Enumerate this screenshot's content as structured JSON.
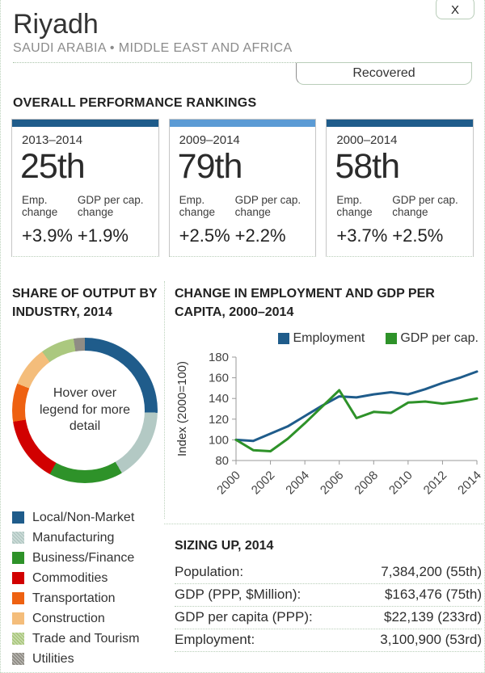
{
  "header": {
    "title": "Riyadh",
    "subtitle": "SAUDI ARABIA • MIDDLE EAST AND AFRICA",
    "close_label": "X",
    "status_label": "Recovered"
  },
  "rankings": {
    "heading": "OVERALL PERFORMANCE RANKINGS",
    "cards": [
      {
        "period": "2013–2014",
        "rank": "25th",
        "bar_color": "#1f5c8b",
        "emp_label": "Emp. change",
        "gdp_label": "GDP per cap. change",
        "emp_value": "+3.9%",
        "gdp_value": "+1.9%"
      },
      {
        "period": "2009–2014",
        "rank": "79th",
        "bar_color": "#5b9bd5",
        "emp_label": "Emp. change",
        "gdp_label": "GDP per cap. change",
        "emp_value": "+2.5%",
        "gdp_value": "+2.2%"
      },
      {
        "period": "2000–2014",
        "rank": "58th",
        "bar_color": "#1f5c8b",
        "emp_label": "Emp. change",
        "gdp_label": "GDP per cap. change",
        "emp_value": "+3.7%",
        "gdp_value": "+2.5%"
      }
    ]
  },
  "industry": {
    "heading": "SHARE OF OUTPUT BY INDUSTRY, 2014"
  },
  "employment_chart": {
    "heading": "CHANGE IN EMPLOYMENT AND GDP PER CAPITA, 2000–2014"
  },
  "sizing": {
    "heading": "SIZING UP, 2014",
    "rows": [
      {
        "label": "Population:",
        "value": "7,384,200 (55th)"
      },
      {
        "label": "GDP (PPP, $Million):",
        "value": "$163,476 (75th)"
      },
      {
        "label": "GDP per capita (PPP):",
        "value": "$22,139 (233rd)"
      },
      {
        "label": "Employment:",
        "value": "3,100,900 (53rd)"
      }
    ]
  },
  "chart_data": [
    {
      "type": "pie",
      "donut": true,
      "title": "SHARE OF OUTPUT BY INDUSTRY, 2014",
      "center_text": "Hover over legend for more detail",
      "labels": [
        "Local/Non-Market",
        "Manufacturing",
        "Business/Finance",
        "Commodities",
        "Transportation",
        "Construction",
        "Trade and Tourism",
        "Utilities"
      ],
      "values": [
        25.5,
        16,
        16.5,
        14.5,
        8.5,
        9,
        7.5,
        2.5
      ],
      "colors": [
        "#1f5c8b",
        "#b3c9c4",
        "#2e9229",
        "#d10000",
        "#ee6111",
        "#f4bd7b",
        "#abc87f",
        "#8f8c85"
      ],
      "patterned": [
        false,
        true,
        false,
        false,
        false,
        false,
        true,
        true
      ],
      "legend_position": "bottom-left",
      "start_angle_deg": 0
    },
    {
      "type": "line",
      "title": "CHANGE IN EMPLOYMENT AND GDP PER CAPITA, 2000–2014",
      "x": [
        2000,
        2001,
        2002,
        2003,
        2004,
        2005,
        2006,
        2007,
        2008,
        2009,
        2010,
        2011,
        2012,
        2013,
        2014
      ],
      "series": [
        {
          "name": "Employment",
          "color": "#1f5c8b",
          "values": [
            100,
            99,
            106,
            113,
            123,
            133,
            142,
            141,
            144,
            146,
            144,
            149,
            155,
            160,
            166
          ]
        },
        {
          "name": "GDP per cap.",
          "color": "#2e9229",
          "values": [
            100,
            90,
            89,
            101,
            116,
            132,
            148,
            121,
            127,
            126,
            136,
            137,
            135,
            137,
            140
          ]
        }
      ],
      "xlabel": "",
      "ylabel": "Index (2000=100)",
      "ylim": [
        80,
        180
      ],
      "yticks": [
        80,
        100,
        120,
        140,
        160,
        180
      ],
      "xticks": [
        2000,
        2002,
        2004,
        2006,
        2008,
        2010,
        2012,
        2014
      ],
      "grid": false,
      "legend_position": "top"
    }
  ]
}
